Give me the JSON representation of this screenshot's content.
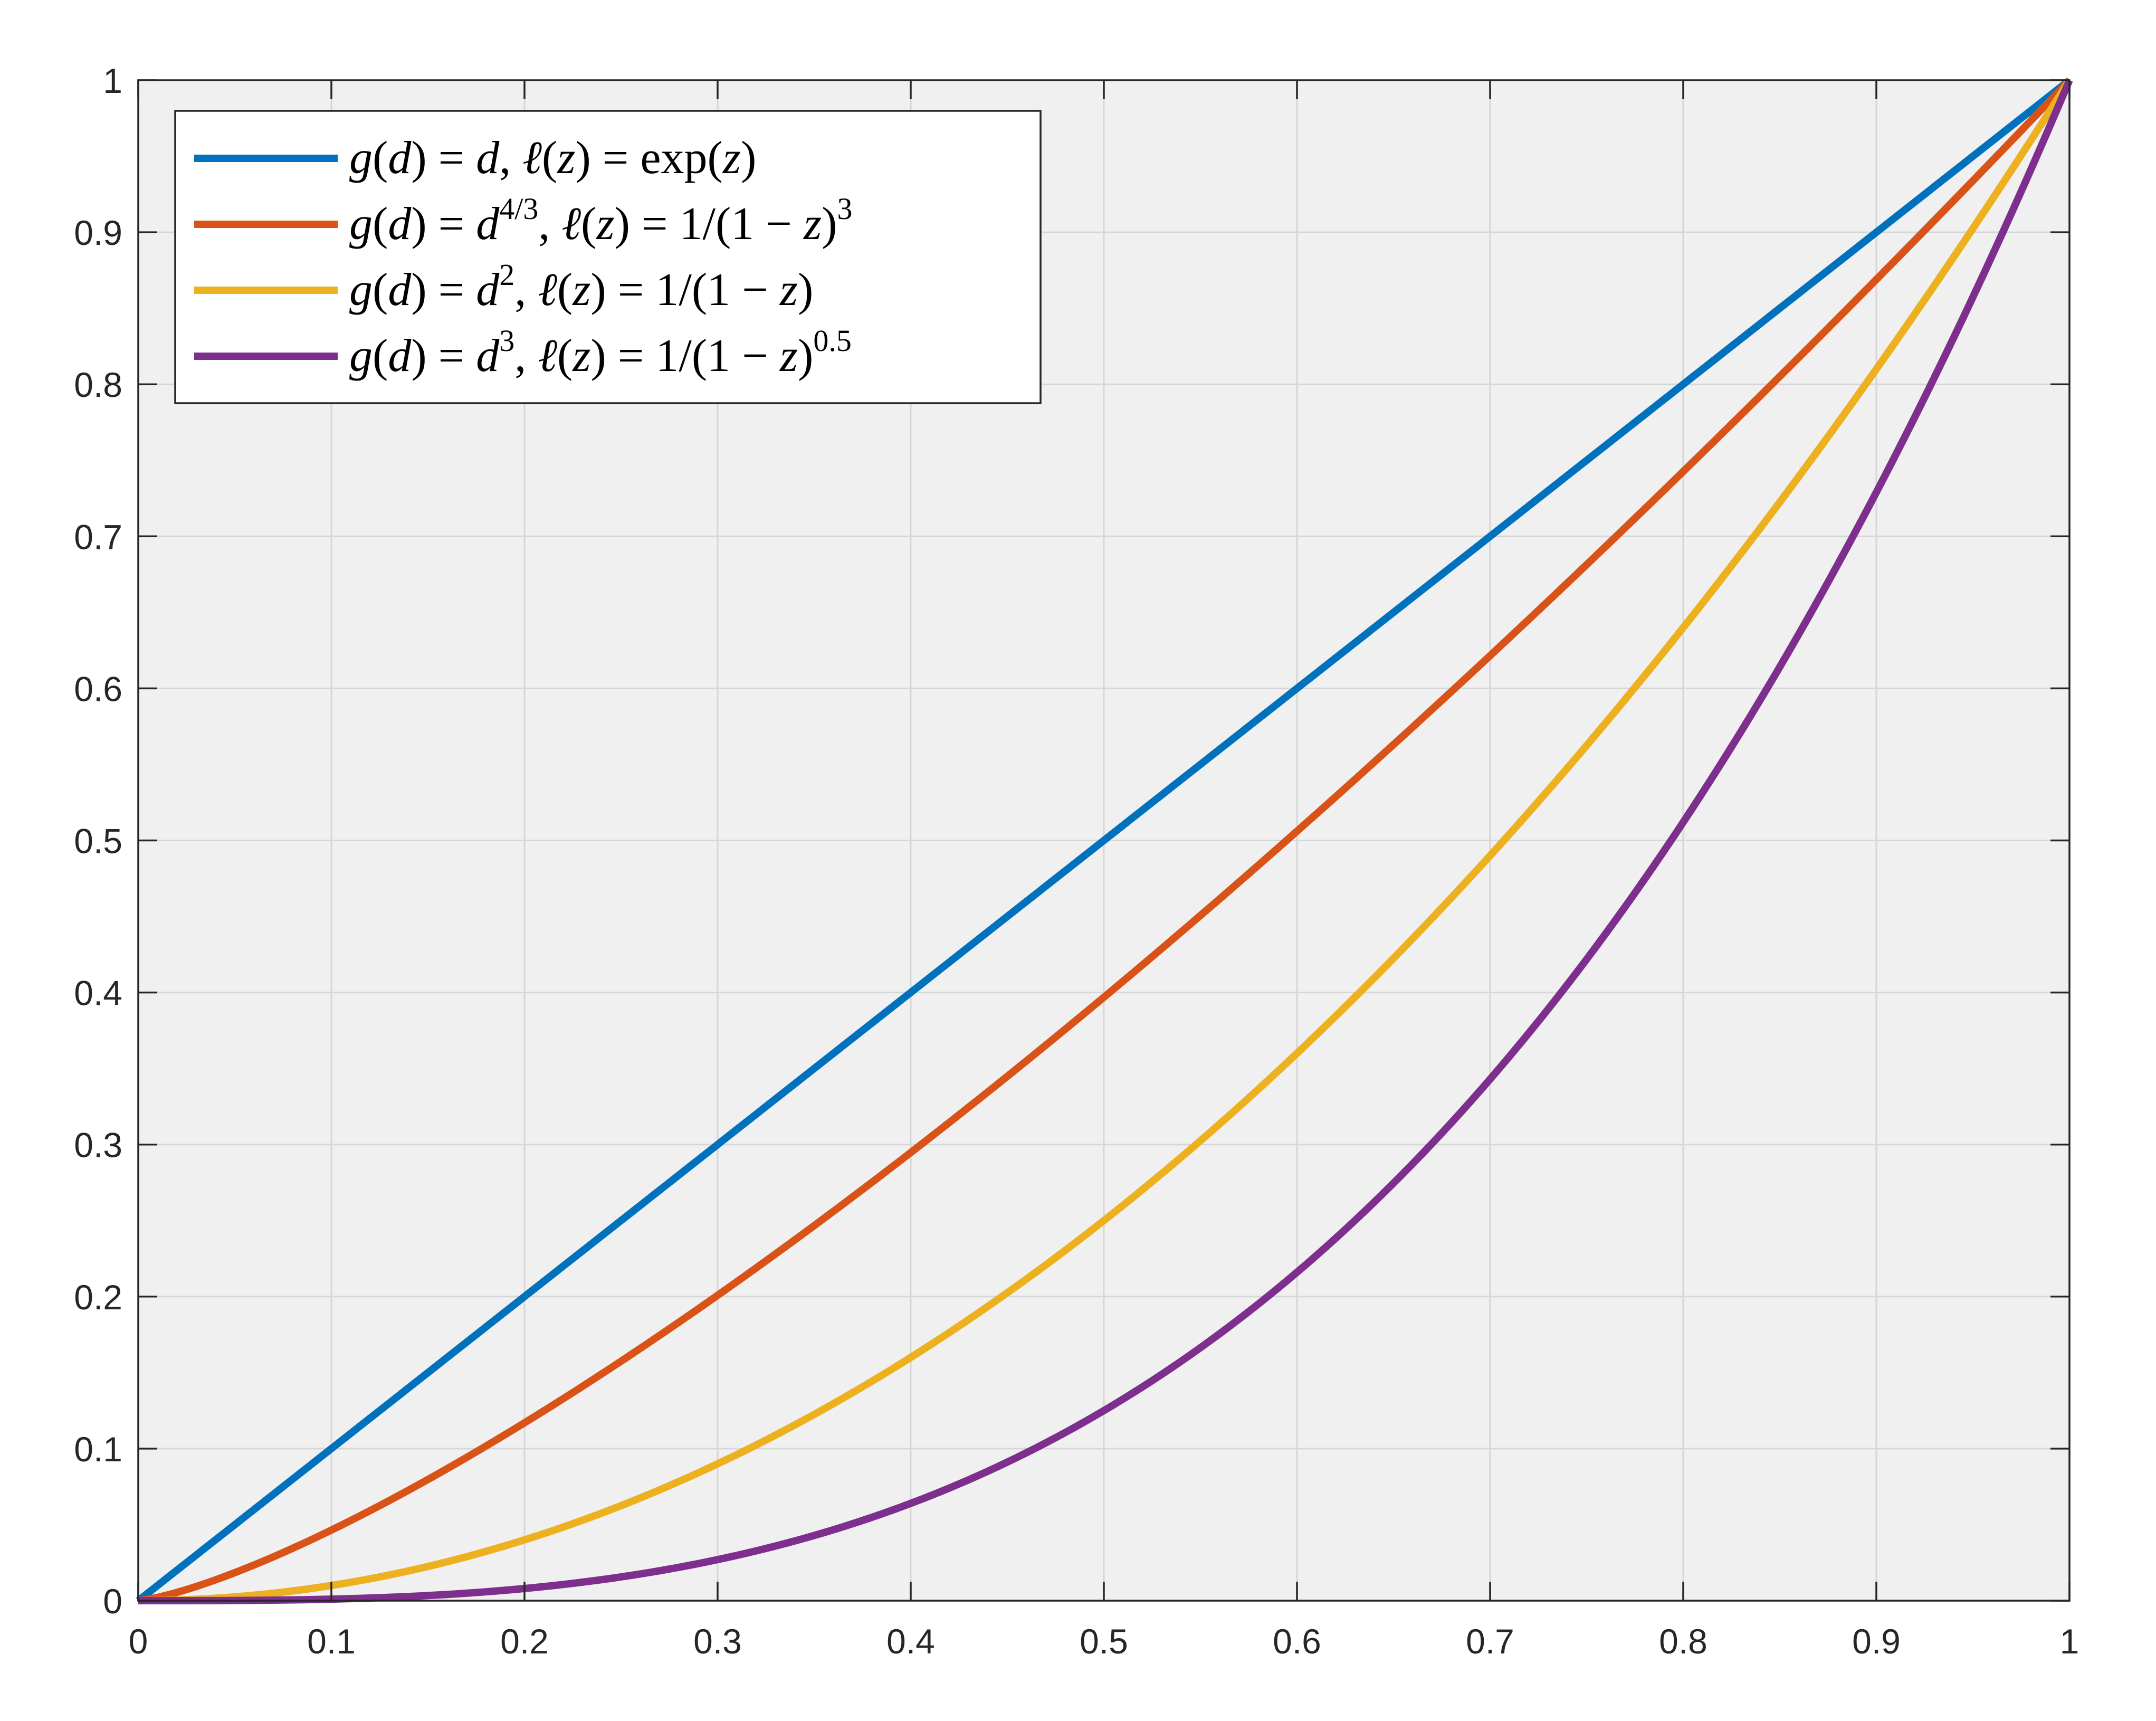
{
  "chart_data": {
    "type": "line",
    "title": "",
    "xlabel": "",
    "ylabel": "",
    "xlim": [
      0,
      1
    ],
    "ylim": [
      0,
      1
    ],
    "xticks": [
      0,
      0.1,
      0.2,
      0.3,
      0.4,
      0.5,
      0.6,
      0.7,
      0.8,
      0.9,
      1
    ],
    "yticks": [
      0,
      0.1,
      0.2,
      0.3,
      0.4,
      0.5,
      0.6,
      0.7,
      0.8,
      0.9,
      1
    ],
    "xtick_labels": [
      "0",
      "0.1",
      "0.2",
      "0.3",
      "0.4",
      "0.5",
      "0.6",
      "0.7",
      "0.8",
      "0.9",
      "1"
    ],
    "ytick_labels": [
      "0",
      "0.1",
      "0.2",
      "0.3",
      "0.4",
      "0.5",
      "0.6",
      "0.7",
      "0.8",
      "0.9",
      "1"
    ],
    "grid": true,
    "legend_position": "top-left",
    "background": "#f0f0f0",
    "x": [
      0,
      0.1,
      0.2,
      0.3,
      0.4,
      0.5,
      0.6,
      0.7,
      0.8,
      0.9,
      1
    ],
    "series": [
      {
        "legend": [
          {
            "t": "g"
          },
          {
            "t": "(",
            "rm": true
          },
          {
            "t": "d"
          },
          {
            "t": ")",
            "rm": true
          },
          {
            "t": " = ",
            "rm": true
          },
          {
            "t": "d"
          },
          {
            "t": ", ",
            "rm": true
          },
          {
            "t": "ℓ"
          },
          {
            "t": "(",
            "rm": true
          },
          {
            "t": "z"
          },
          {
            "t": ")",
            "rm": true
          },
          {
            "t": " = ",
            "rm": true
          },
          {
            "t": "exp",
            "rm": true
          },
          {
            "t": "(",
            "rm": true
          },
          {
            "t": "z"
          },
          {
            "t": ")",
            "rm": true
          }
        ],
        "color": "#0072bd",
        "exponent": 1,
        "values": [
          0,
          0.1,
          0.2,
          0.3,
          0.4,
          0.5,
          0.6,
          0.7,
          0.8,
          0.9,
          1
        ]
      },
      {
        "legend": [
          {
            "t": "g"
          },
          {
            "t": "(",
            "rm": true
          },
          {
            "t": "d"
          },
          {
            "t": ")",
            "rm": true
          },
          {
            "t": " = ",
            "rm": true
          },
          {
            "t": "d"
          },
          {
            "t": "4/3",
            "rm": true,
            "sup": true
          },
          {
            "t": ", ",
            "rm": true
          },
          {
            "t": "ℓ"
          },
          {
            "t": "(",
            "rm": true
          },
          {
            "t": "z"
          },
          {
            "t": ")",
            "rm": true
          },
          {
            "t": " = 1/(1 − ",
            "rm": true
          },
          {
            "t": "z"
          },
          {
            "t": ")",
            "rm": true
          },
          {
            "t": "3",
            "rm": true,
            "sup": true
          }
        ],
        "color": "#d95319",
        "exponent": 1.3333,
        "values": [
          0,
          0.046,
          0.117,
          0.2,
          0.295,
          0.397,
          0.506,
          0.622,
          0.743,
          0.869,
          1
        ]
      },
      {
        "legend": [
          {
            "t": "g"
          },
          {
            "t": "(",
            "rm": true
          },
          {
            "t": "d"
          },
          {
            "t": ")",
            "rm": true
          },
          {
            "t": " = ",
            "rm": true
          },
          {
            "t": "d"
          },
          {
            "t": "2",
            "rm": true,
            "sup": true
          },
          {
            "t": ", ",
            "rm": true
          },
          {
            "t": "ℓ"
          },
          {
            "t": "(",
            "rm": true
          },
          {
            "t": "z"
          },
          {
            "t": ")",
            "rm": true
          },
          {
            "t": " = 1/(1 − ",
            "rm": true
          },
          {
            "t": "z"
          },
          {
            "t": ")",
            "rm": true
          }
        ],
        "color": "#edb120",
        "exponent": 2,
        "values": [
          0,
          0.01,
          0.04,
          0.09,
          0.16,
          0.25,
          0.36,
          0.49,
          0.64,
          0.81,
          1
        ]
      },
      {
        "legend": [
          {
            "t": "g"
          },
          {
            "t": "(",
            "rm": true
          },
          {
            "t": "d"
          },
          {
            "t": ")",
            "rm": true
          },
          {
            "t": " = ",
            "rm": true
          },
          {
            "t": "d"
          },
          {
            "t": "3",
            "rm": true,
            "sup": true
          },
          {
            "t": ", ",
            "rm": true
          },
          {
            "t": "ℓ"
          },
          {
            "t": "(",
            "rm": true
          },
          {
            "t": "z"
          },
          {
            "t": ")",
            "rm": true
          },
          {
            "t": " = 1/(1 − ",
            "rm": true
          },
          {
            "t": "z"
          },
          {
            "t": ")",
            "rm": true
          },
          {
            "t": "0.5",
            "rm": true,
            "sup": true
          }
        ],
        "color": "#7e2f8e",
        "exponent": 3,
        "values": [
          0,
          0.001,
          0.008,
          0.027,
          0.064,
          0.125,
          0.216,
          0.343,
          0.512,
          0.729,
          1
        ]
      }
    ]
  }
}
